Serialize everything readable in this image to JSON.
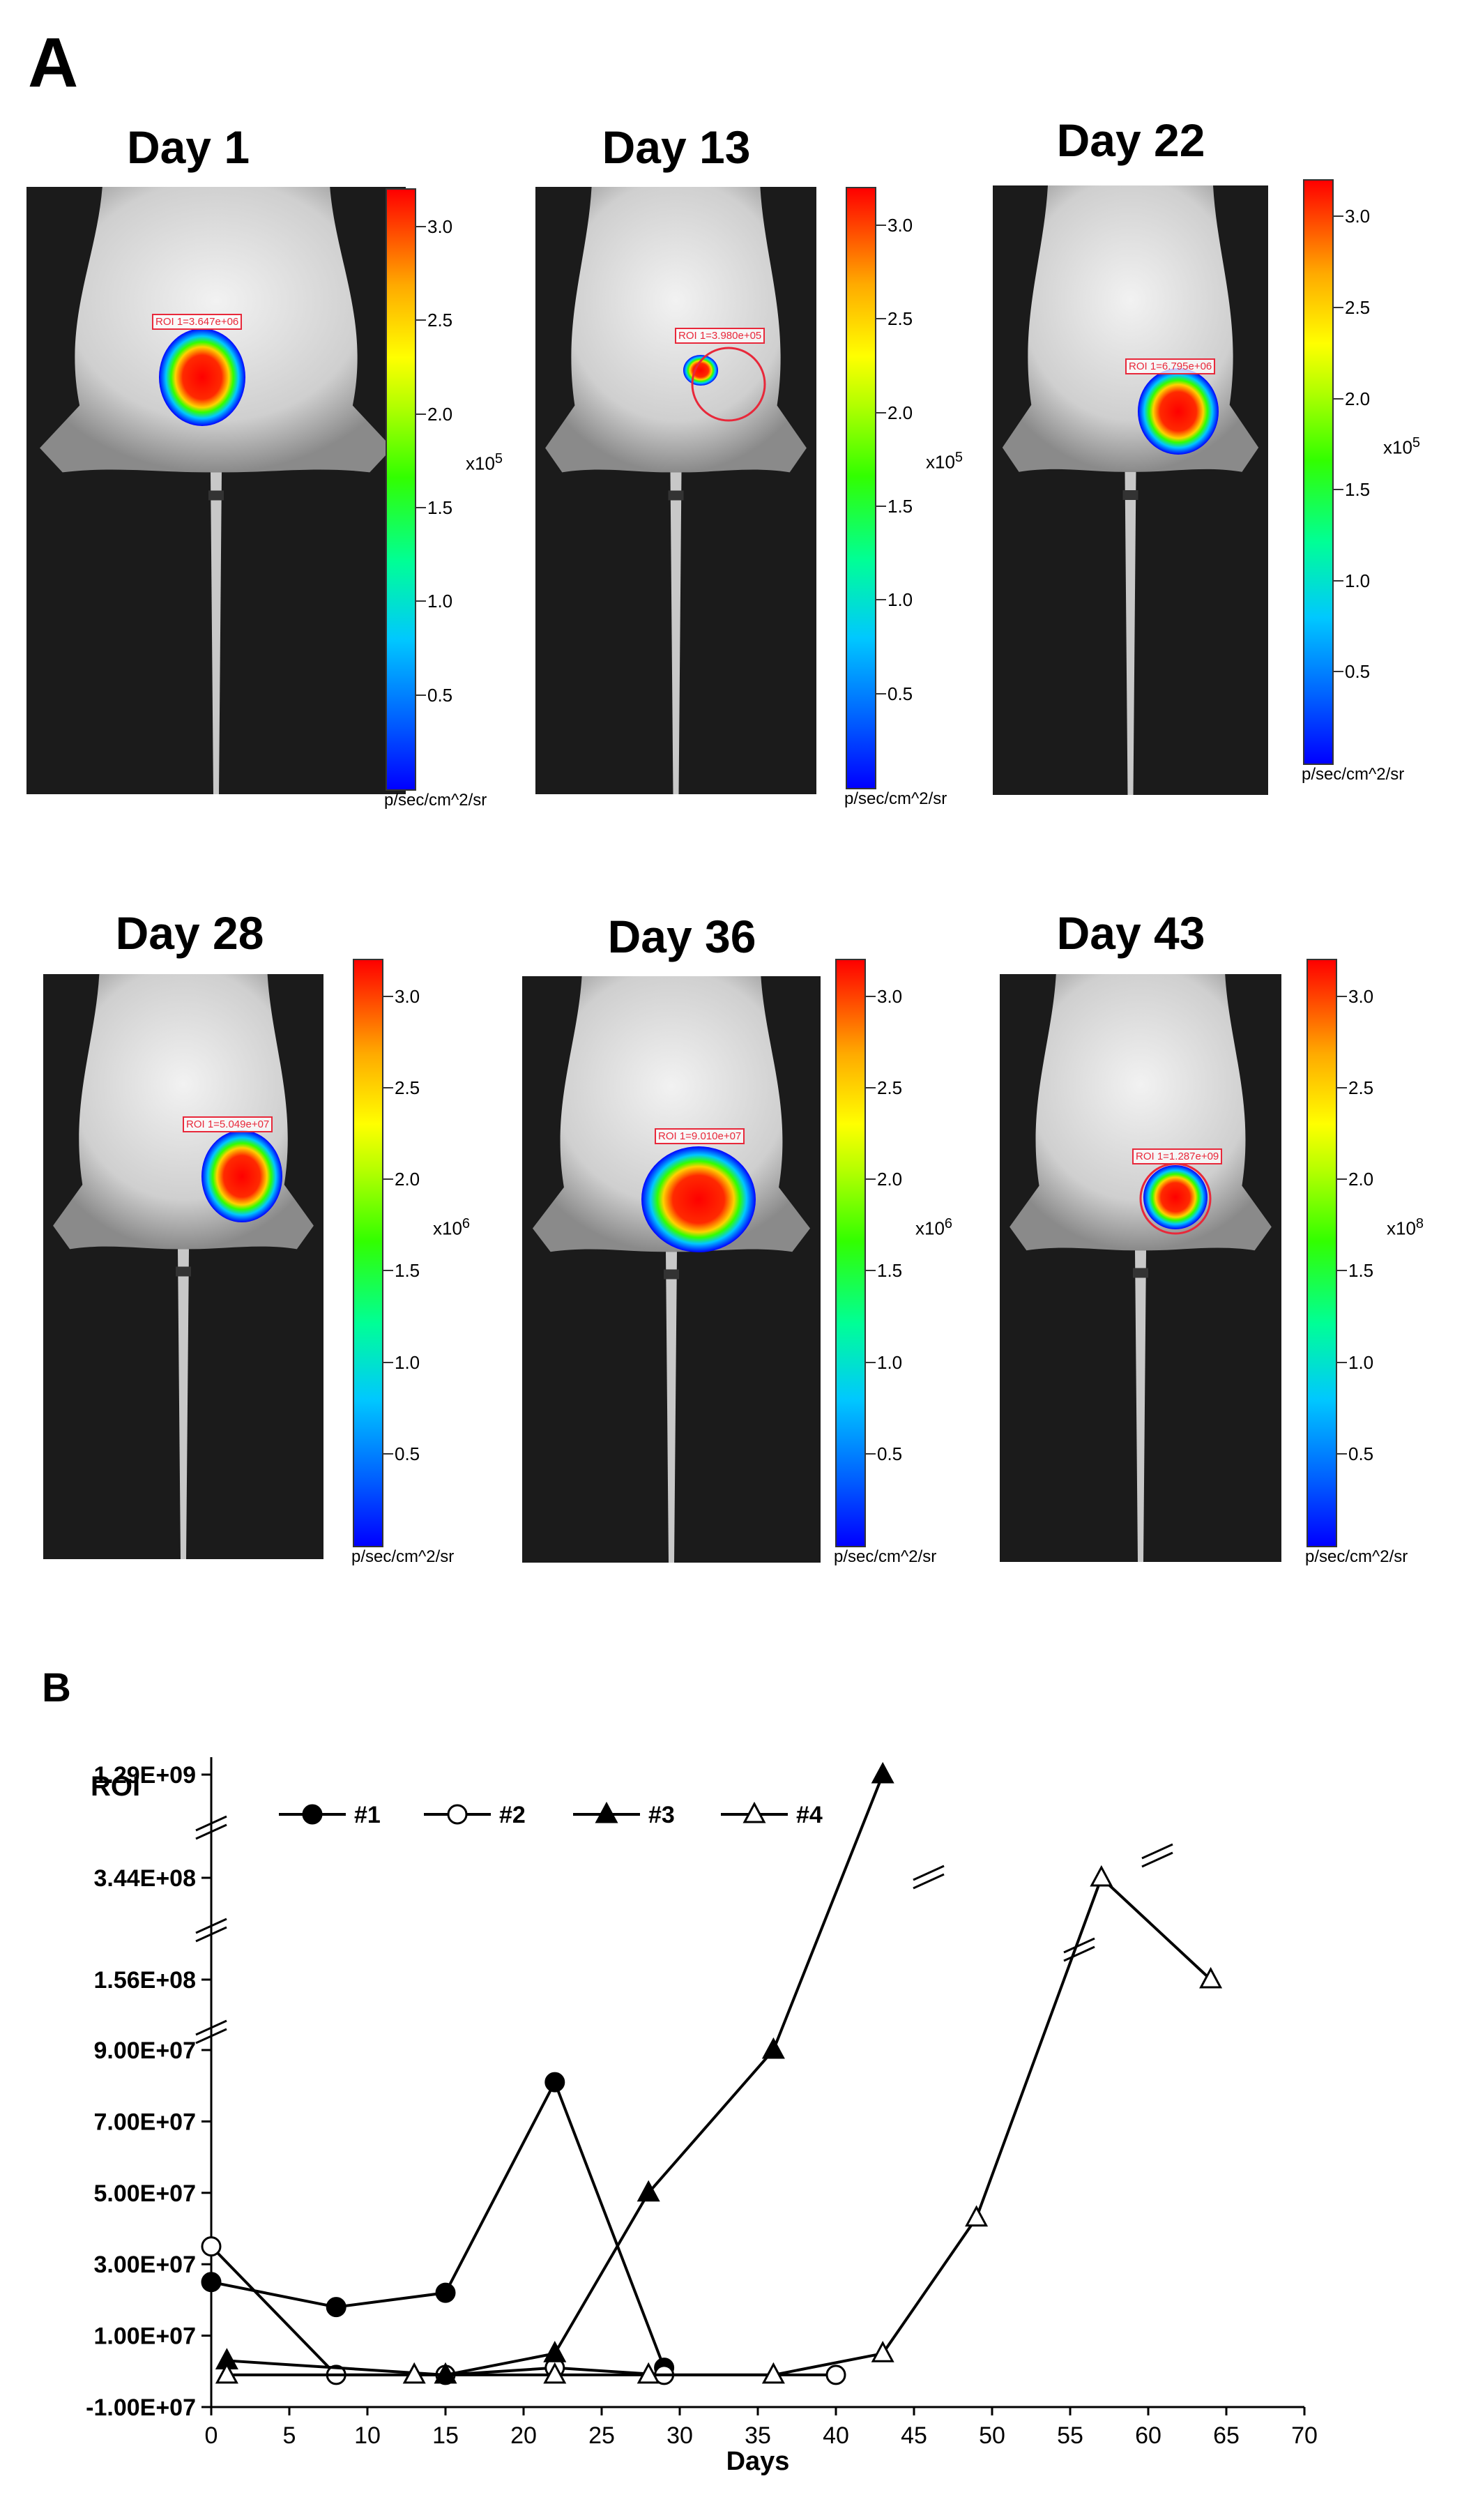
{
  "panel_a": {
    "letter": "A",
    "panels": [
      {
        "day": "Day 1",
        "roi": "ROI 1=3.647e+06",
        "scale": [
          "3.0",
          "2.5",
          "2.0",
          "1.5",
          "1.0",
          "0.5"
        ],
        "multiplier_base": "x10",
        "multiplier_exp": "5",
        "unit": "p/sec/cm^2/sr"
      },
      {
        "day": "Day 13",
        "roi": "ROI 1=3.980e+05",
        "scale": [
          "3.0",
          "2.5",
          "2.0",
          "1.5",
          "1.0",
          "0.5"
        ],
        "multiplier_base": "x10",
        "multiplier_exp": "5",
        "unit": "p/sec/cm^2/sr"
      },
      {
        "day": "Day 22",
        "roi": "ROI 1=6.795e+06",
        "scale": [
          "3.0",
          "2.5",
          "2.0",
          "1.5",
          "1.0",
          "0.5"
        ],
        "multiplier_base": "x10",
        "multiplier_exp": "5",
        "unit": "p/sec/cm^2/sr"
      },
      {
        "day": "Day 28",
        "roi": "ROI 1=5.049e+07",
        "scale": [
          "3.0",
          "2.5",
          "2.0",
          "1.5",
          "1.0",
          "0.5"
        ],
        "multiplier_base": "x10",
        "multiplier_exp": "6",
        "unit": "p/sec/cm^2/sr"
      },
      {
        "day": "Day 36",
        "roi": "ROI 1=9.010e+07",
        "scale": [
          "3.0",
          "2.5",
          "2.0",
          "1.5",
          "1.0",
          "0.5"
        ],
        "multiplier_base": "x10",
        "multiplier_exp": "6",
        "unit": "p/sec/cm^2/sr"
      },
      {
        "day": "Day 43",
        "roi": "ROI 1=1.287e+09",
        "scale": [
          "3.0",
          "2.5",
          "2.0",
          "1.5",
          "1.0",
          "0.5"
        ],
        "multiplier_base": "x10",
        "multiplier_exp": "8",
        "unit": "p/sec/cm^2/sr"
      }
    ]
  },
  "panel_b": {
    "letter": "B"
  },
  "chart_data": {
    "type": "line",
    "ylabel": "ROI",
    "xlabel": "Days",
    "x_ticks": [
      0,
      5,
      10,
      15,
      20,
      25,
      30,
      35,
      40,
      45,
      50,
      55,
      60,
      65,
      70
    ],
    "xlim": [
      0,
      70
    ],
    "y_tick_labels": [
      "1.29E+09",
      "3.44E+08",
      "1.56E+08",
      "9.00E+07",
      "7.00E+07",
      "5.00E+07",
      "3.00E+07",
      "1.00E+07",
      "-1.00E+07"
    ],
    "y_linear_ticks": [
      -10000000,
      10000000,
      30000000,
      50000000,
      70000000,
      90000000
    ],
    "y_break_values": [
      156000000,
      344000000,
      1290000000
    ],
    "axis_breaks": "y-axis broken above 9.00E+07 and between 1.56E+08, 3.44E+08 and 1.29E+09",
    "grid": false,
    "legend_position": "top-left",
    "series": [
      {
        "name": "#1",
        "marker": "filled-circle",
        "points": [
          [
            0,
            25000000
          ],
          [
            8,
            18000000
          ],
          [
            15,
            22000000
          ],
          [
            22,
            81000000
          ],
          [
            29,
            1000000
          ]
        ]
      },
      {
        "name": "#2",
        "marker": "open-circle",
        "points": [
          [
            0,
            35000000
          ],
          [
            8,
            -1000000
          ],
          [
            15,
            -1000000
          ],
          [
            22,
            1000000
          ],
          [
            29,
            -1000000
          ],
          [
            40,
            -1000000
          ]
        ]
      },
      {
        "name": "#3",
        "marker": "filled-triangle",
        "points": [
          [
            1,
            3000000
          ],
          [
            15,
            -1000000
          ],
          [
            22,
            5000000
          ],
          [
            28,
            50000000
          ],
          [
            36,
            90000000
          ],
          [
            43,
            1290000000
          ]
        ]
      },
      {
        "name": "#4",
        "marker": "open-triangle",
        "points": [
          [
            1,
            -1000000
          ],
          [
            13,
            -1000000
          ],
          [
            22,
            -1000000
          ],
          [
            28,
            -1000000
          ],
          [
            36,
            -1000000
          ],
          [
            43,
            5000000
          ],
          [
            49,
            43000000
          ],
          [
            57,
            344000000
          ],
          [
            64,
            156000000
          ]
        ]
      }
    ]
  }
}
